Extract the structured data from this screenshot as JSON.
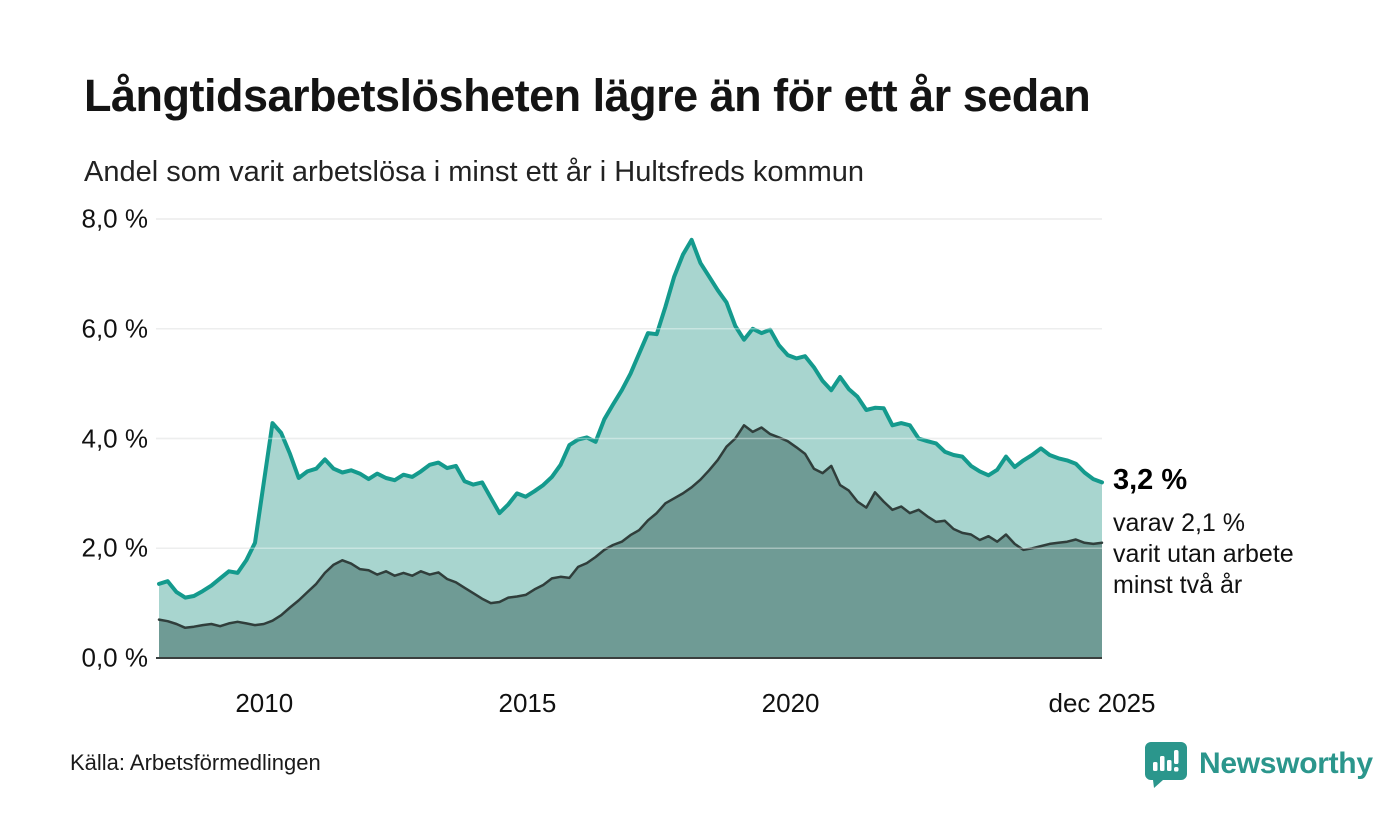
{
  "header": {
    "title": "Långtidsarbetslösheten lägre än för ett år sedan",
    "subtitle": "Andel som varit arbetslösa i minst ett år i Hultsfreds kommun"
  },
  "chart_data": {
    "type": "area",
    "title": "Långtidsarbetslösheten lägre än för ett år sedan",
    "subtitle": "Andel som varit arbetslösa i minst ett år i Hultsfreds kommun",
    "x_start_year": 2008.0,
    "x_end_year": 2025.9167,
    "ylim": [
      0,
      8
    ],
    "grid": true,
    "yticks": [
      {
        "value": 0,
        "label": "0,0 %"
      },
      {
        "value": 2,
        "label": "2,0 %"
      },
      {
        "value": 4,
        "label": "4,0 %"
      },
      {
        "value": 6,
        "label": "6,0 %"
      },
      {
        "value": 8,
        "label": "8,0 %"
      }
    ],
    "xticks": [
      {
        "year": 2010,
        "label": "2010"
      },
      {
        "year": 2015,
        "label": "2015"
      },
      {
        "year": 2020,
        "label": "2020"
      },
      {
        "year": 2025.9167,
        "label": "dec 2025"
      }
    ],
    "series": [
      {
        "name": "Andel arbetslösa minst ett år",
        "line_color": "#149a8d",
        "fill_color": "#a8d5cf",
        "line_width": 4,
        "last_value_label": "3,2 %",
        "values": [
          1.35,
          1.4,
          1.2,
          1.1,
          1.13,
          1.22,
          1.32,
          1.45,
          1.58,
          1.55,
          1.78,
          2.1,
          3.2,
          4.28,
          4.1,
          3.72,
          3.28,
          3.4,
          3.45,
          3.62,
          3.45,
          3.38,
          3.42,
          3.36,
          3.26,
          3.36,
          3.28,
          3.24,
          3.34,
          3.3,
          3.4,
          3.52,
          3.56,
          3.46,
          3.5,
          3.22,
          3.16,
          3.2,
          2.92,
          2.64,
          2.8,
          3.0,
          2.94,
          3.04,
          3.15,
          3.3,
          3.52,
          3.88,
          3.98,
          4.02,
          3.94,
          4.35,
          4.62,
          4.88,
          5.18,
          5.55,
          5.92,
          5.9,
          6.4,
          6.95,
          7.35,
          7.62,
          7.2,
          6.95,
          6.7,
          6.48,
          6.05,
          5.8,
          6.0,
          5.92,
          5.98,
          5.7,
          5.52,
          5.46,
          5.5,
          5.3,
          5.05,
          4.88,
          5.12,
          4.9,
          4.76,
          4.52,
          4.56,
          4.55,
          4.24,
          4.28,
          4.24,
          4.0,
          3.95,
          3.91,
          3.76,
          3.7,
          3.67,
          3.5,
          3.4,
          3.33,
          3.43,
          3.67,
          3.48,
          3.6,
          3.7,
          3.82,
          3.7,
          3.64,
          3.6,
          3.54,
          3.38,
          3.26,
          3.2
        ]
      },
      {
        "name": "Andel arbetslösa minst två år",
        "line_color": "#303e3b",
        "fill_color": "#6f9b95",
        "line_width": 2.5,
        "last_value_label": "2,1 %",
        "values": [
          0.7,
          0.67,
          0.62,
          0.55,
          0.57,
          0.6,
          0.62,
          0.58,
          0.63,
          0.66,
          0.63,
          0.6,
          0.62,
          0.68,
          0.78,
          0.92,
          1.05,
          1.2,
          1.35,
          1.55,
          1.7,
          1.78,
          1.72,
          1.62,
          1.6,
          1.52,
          1.58,
          1.5,
          1.55,
          1.5,
          1.58,
          1.52,
          1.56,
          1.44,
          1.38,
          1.28,
          1.18,
          1.08,
          1.0,
          1.02,
          1.1,
          1.12,
          1.15,
          1.25,
          1.33,
          1.45,
          1.48,
          1.46,
          1.66,
          1.73,
          1.84,
          1.97,
          2.06,
          2.12,
          2.24,
          2.33,
          2.51,
          2.64,
          2.82,
          2.91,
          3.0,
          3.11,
          3.25,
          3.42,
          3.61,
          3.85,
          4.0,
          4.24,
          4.12,
          4.2,
          4.08,
          4.02,
          3.95,
          3.84,
          3.72,
          3.45,
          3.37,
          3.5,
          3.15,
          3.05,
          2.85,
          2.74,
          3.02,
          2.85,
          2.7,
          2.76,
          2.64,
          2.7,
          2.58,
          2.48,
          2.5,
          2.35,
          2.28,
          2.25,
          2.15,
          2.22,
          2.12,
          2.25,
          2.08,
          1.97,
          2.0,
          2.04,
          2.08,
          2.1,
          2.12,
          2.16,
          2.1,
          2.08,
          2.1
        ]
      }
    ],
    "legend_position": "none"
  },
  "annotation": {
    "value_label": "3,2 %",
    "detail_text": "varav 2,1 %\nvarit utan arbete\nminst två år"
  },
  "footer": {
    "source": "Källa: Arbetsförmedlingen",
    "brand": "Newsworthy"
  },
  "colors": {
    "accent_teal": "#149a8d",
    "light_fill": "#a8d5cf",
    "dark_fill": "#6f9b95",
    "dark_line": "#303e3b",
    "gridline": "#e2e4e4",
    "axis_line": "#3a3f3e",
    "brand_teal": "#2b968c"
  }
}
